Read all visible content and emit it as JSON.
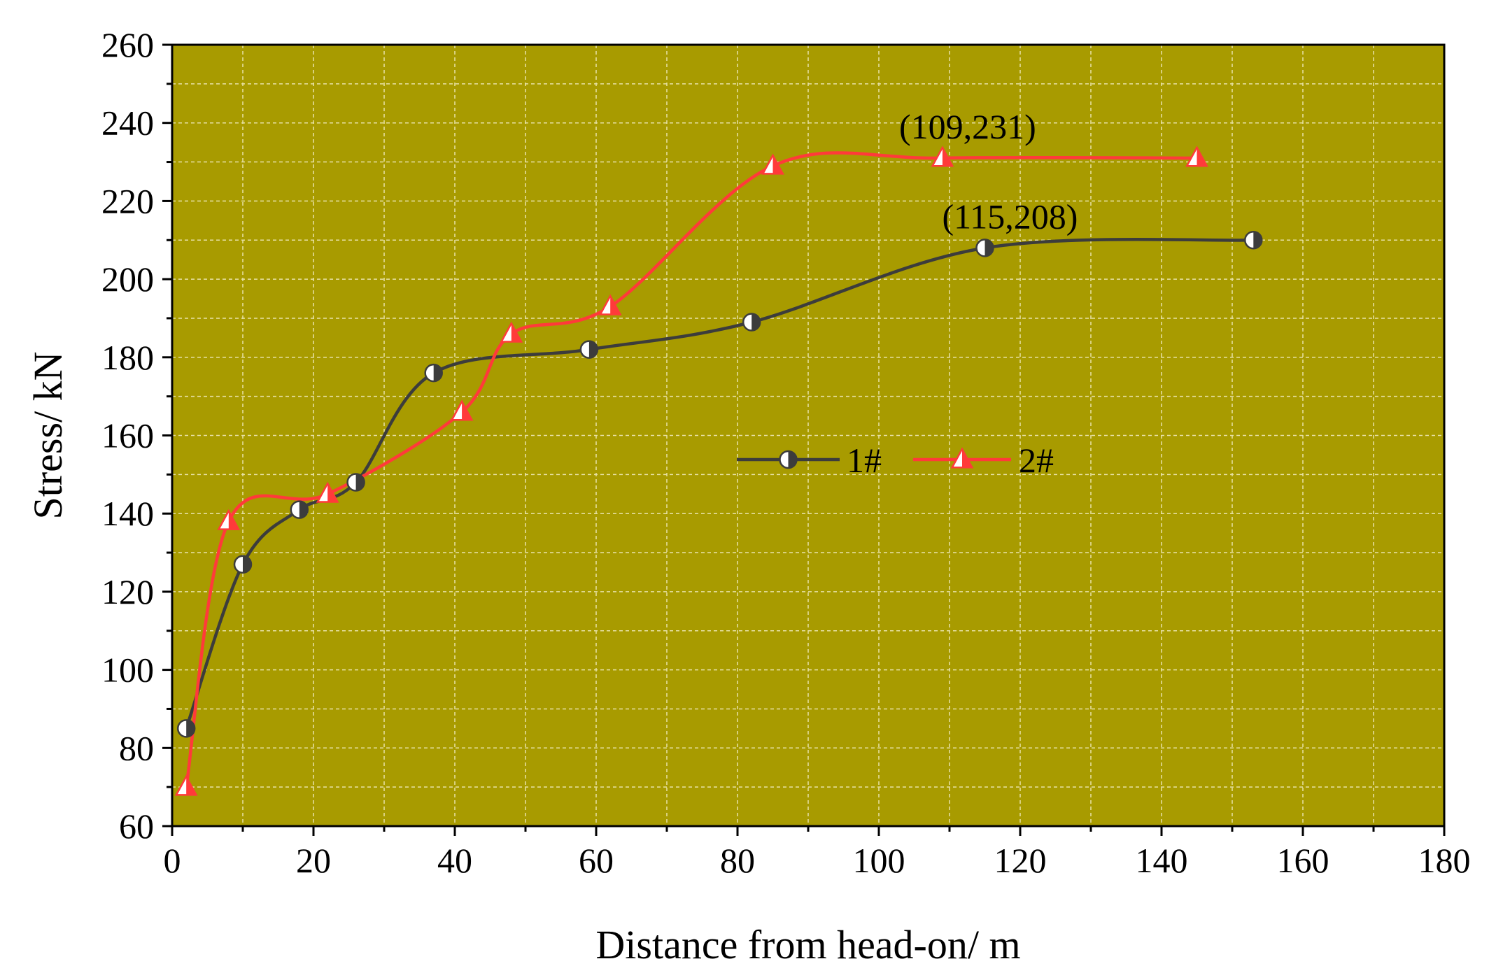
{
  "chart_data": {
    "type": "line",
    "xlabel": "Distance from head-on/ m",
    "ylabel": "Stress/ kN",
    "xlim": [
      0,
      180
    ],
    "ylim": [
      60,
      260
    ],
    "xticks": [
      0,
      20,
      40,
      60,
      80,
      100,
      120,
      140,
      160,
      180
    ],
    "yticks": [
      60,
      80,
      100,
      120,
      140,
      160,
      180,
      200,
      220,
      240,
      260
    ],
    "grid": true,
    "legend_position": "center-right",
    "background_color": "#a89b00",
    "series": [
      {
        "name": "1#",
        "color": "#3c3c3c",
        "marker": "half-filled-circle",
        "x": [
          2,
          10,
          18,
          26,
          37,
          59,
          82,
          115,
          153
        ],
        "y": [
          85,
          127,
          141,
          148,
          176,
          182,
          189,
          208,
          210
        ]
      },
      {
        "name": "2#",
        "color": "#ff3a3a",
        "marker": "half-filled-triangle",
        "x": [
          2,
          8,
          22,
          41,
          48,
          62,
          85,
          109,
          145
        ],
        "y": [
          70,
          138,
          145,
          166,
          186,
          193,
          229,
          231,
          231
        ]
      }
    ],
    "annotations": [
      {
        "text": "(109,231)",
        "x": 109,
        "y": 231
      },
      {
        "text": "(115,208)",
        "x": 115,
        "y": 208
      }
    ]
  }
}
